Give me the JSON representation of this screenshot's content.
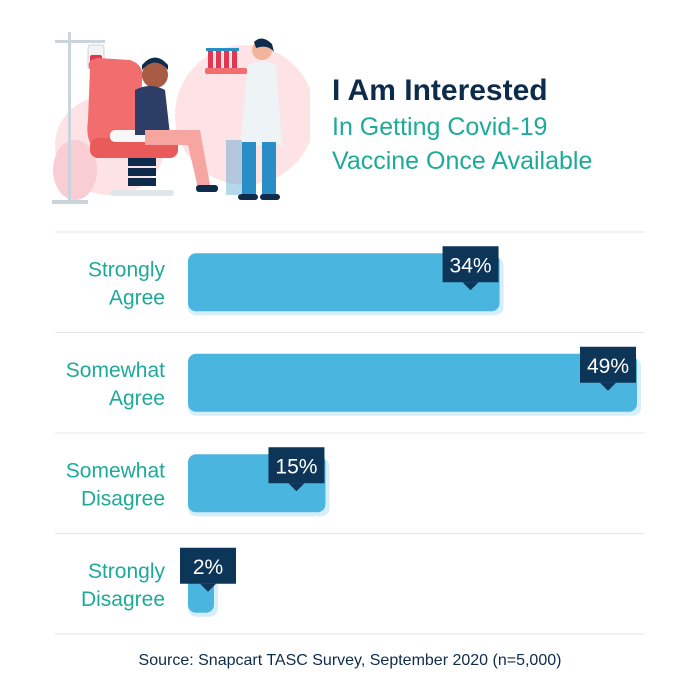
{
  "title": "I Am Interested",
  "subtitle_lines": [
    "In Getting Covid-19",
    "Vaccine Once Available"
  ],
  "source": "Source: Snapcart TASC Survey, September 2020 (n=5,000)",
  "colors": {
    "bar": "#4ab6e0",
    "bar_shadow": "#d6eef9",
    "label_box": "#0d3558",
    "category_text": "#1eaa9a",
    "title_dark": "#0d2b4a",
    "divider": "#e6e6e6"
  },
  "illustration": {
    "icons": [
      "iv-stand-icon",
      "patient-chair-icon",
      "doctor-icon",
      "test-tube-tray-icon"
    ]
  },
  "chart_data": {
    "type": "bar",
    "orientation": "horizontal",
    "categories": [
      [
        "Strongly",
        "Agree"
      ],
      [
        "Somewhat",
        "Agree"
      ],
      [
        "Somewhat",
        "Disagree"
      ],
      [
        "Strongly",
        "Disagree"
      ]
    ],
    "values": [
      34,
      49,
      15,
      2
    ],
    "value_labels": [
      "34%",
      "49%",
      "15%",
      "2%"
    ],
    "unit": "%",
    "xlim": [
      0,
      49
    ],
    "grid": false,
    "legend": "none"
  }
}
